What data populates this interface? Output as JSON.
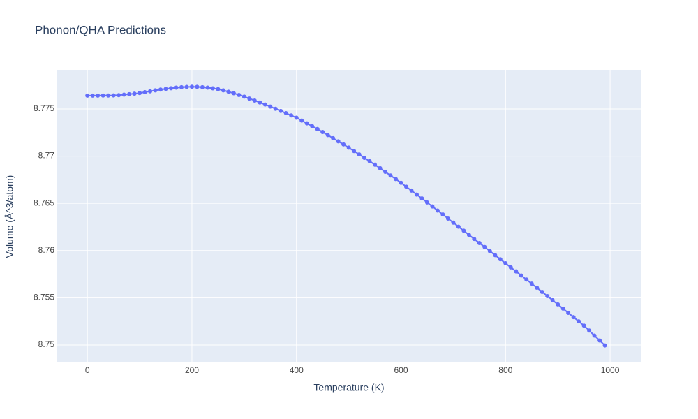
{
  "chart_data": {
    "type": "scatter",
    "title": "Phonon/QHA Predictions",
    "x_label": "Temperature (K)",
    "y_label": "Volume (Å^3/atom)",
    "x": [
      0,
      10,
      20,
      30,
      40,
      50,
      60,
      70,
      80,
      90,
      100,
      110,
      120,
      130,
      140,
      150,
      160,
      170,
      180,
      190,
      200,
      210,
      220,
      230,
      240,
      250,
      260,
      270,
      280,
      290,
      300,
      310,
      320,
      330,
      340,
      350,
      360,
      370,
      380,
      390,
      400,
      410,
      420,
      430,
      440,
      450,
      460,
      470,
      480,
      490,
      500,
      510,
      520,
      530,
      540,
      550,
      560,
      570,
      580,
      590,
      600,
      610,
      620,
      630,
      640,
      650,
      660,
      670,
      680,
      690,
      700,
      710,
      720,
      730,
      740,
      750,
      760,
      770,
      780,
      790,
      800,
      810,
      820,
      830,
      840,
      850,
      860,
      870,
      880,
      890,
      900,
      910,
      920,
      930,
      940,
      950,
      960,
      970,
      980,
      990
    ],
    "series": [
      {
        "color": "#636efa",
        "values": [
          8.77641,
          8.77641,
          8.77641,
          8.77642,
          8.77642,
          8.77643,
          8.77646,
          8.77651,
          8.77656,
          8.77662,
          8.77668,
          8.77677,
          8.77687,
          8.77697,
          8.77705,
          8.77712,
          8.77719,
          8.77725,
          8.7773,
          8.77733,
          8.77735,
          8.77734,
          8.7773,
          8.77725,
          8.77718,
          8.7771,
          8.77697,
          8.77682,
          8.77666,
          8.77648,
          8.7763,
          8.7761,
          8.77589,
          8.77568,
          8.77547,
          8.77525,
          8.77502,
          8.77479,
          8.77455,
          8.77431,
          8.77407,
          8.77377,
          8.77347,
          8.77317,
          8.77287,
          8.77256,
          8.77223,
          8.7719,
          8.77157,
          8.77124,
          8.7709,
          8.77054,
          8.77018,
          8.76982,
          8.76946,
          8.7691,
          8.76872,
          8.76834,
          8.76795,
          8.76757,
          8.76718,
          8.76676,
          8.76635,
          8.76593,
          8.76552,
          8.7651,
          8.76467,
          8.76424,
          8.76382,
          8.76339,
          8.76296,
          8.76253,
          8.7621,
          8.76166,
          8.76123,
          8.7608,
          8.76037,
          8.75994,
          8.75951,
          8.75908,
          8.75865,
          8.75822,
          8.75779,
          8.75736,
          8.75693,
          8.7565,
          8.75606,
          8.75562,
          8.75518,
          8.75474,
          8.7543,
          8.75385,
          8.7534,
          8.75295,
          8.7525,
          8.75205,
          8.75153,
          8.751,
          8.75048,
          8.74995
        ]
      }
    ],
    "xlim": [
      -59,
      1060
    ],
    "ylim": [
      8.74815,
      8.77914
    ],
    "xticks": [
      0,
      200,
      400,
      600,
      800,
      1000
    ],
    "yticks": [
      8.75,
      8.755,
      8.76,
      8.765,
      8.77,
      8.775
    ],
    "grid": true
  }
}
